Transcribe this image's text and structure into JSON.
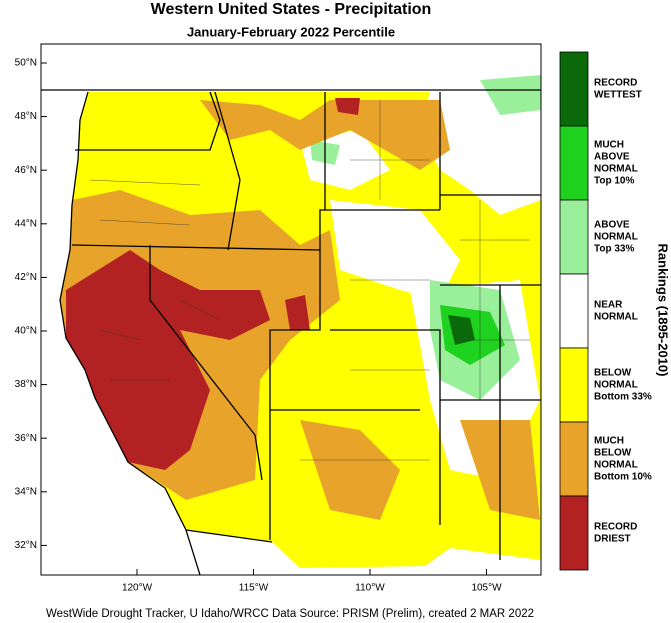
{
  "header": {
    "title": "Western United States - Precipitation",
    "subtitle": "January-February 2022 Percentile"
  },
  "map": {
    "lat_ticks": [
      {
        "value": 50,
        "label": "50°N"
      },
      {
        "value": 48,
        "label": "48°N"
      },
      {
        "value": 46,
        "label": "46°N"
      },
      {
        "value": 44,
        "label": "44°N"
      },
      {
        "value": 42,
        "label": "42°N"
      },
      {
        "value": 40,
        "label": "40°N"
      },
      {
        "value": 38,
        "label": "38°N"
      },
      {
        "value": 36,
        "label": "36°N"
      },
      {
        "value": 34,
        "label": "34°N"
      },
      {
        "value": 32,
        "label": "32°N"
      }
    ],
    "lon_ticks": [
      {
        "value": 120,
        "label": "120°W"
      },
      {
        "value": 115,
        "label": "115°W"
      },
      {
        "value": 110,
        "label": "110°W"
      },
      {
        "value": 105,
        "label": "105°W"
      }
    ]
  },
  "legend": {
    "title": "Rankings (1895-2010)",
    "items": [
      {
        "lines": [
          "RECORD",
          "WETTEST"
        ],
        "color": "#0a6a0a"
      },
      {
        "lines": [
          "MUCH",
          "ABOVE",
          "NORMAL",
          "Top 10%"
        ],
        "color": "#1fd21f"
      },
      {
        "lines": [
          "ABOVE",
          "NORMAL",
          "Top 33%"
        ],
        "color": "#9af09a"
      },
      {
        "lines": [
          "NEAR",
          "NORMAL"
        ],
        "color": "#ffffff"
      },
      {
        "lines": [
          "BELOW",
          "NORMAL",
          "Bottom 33%"
        ],
        "color": "#ffff00"
      },
      {
        "lines": [
          "MUCH",
          "BELOW",
          "NORMAL",
          "Bottom 10%"
        ],
        "color": "#e8a42a"
      },
      {
        "lines": [
          "RECORD",
          "DRIEST"
        ],
        "color": "#b22222"
      }
    ]
  },
  "footer": "WestWide Drought Tracker, U Idaho/WRCC Data Source: PRISM (Prelim), created  2 MAR 2022"
}
